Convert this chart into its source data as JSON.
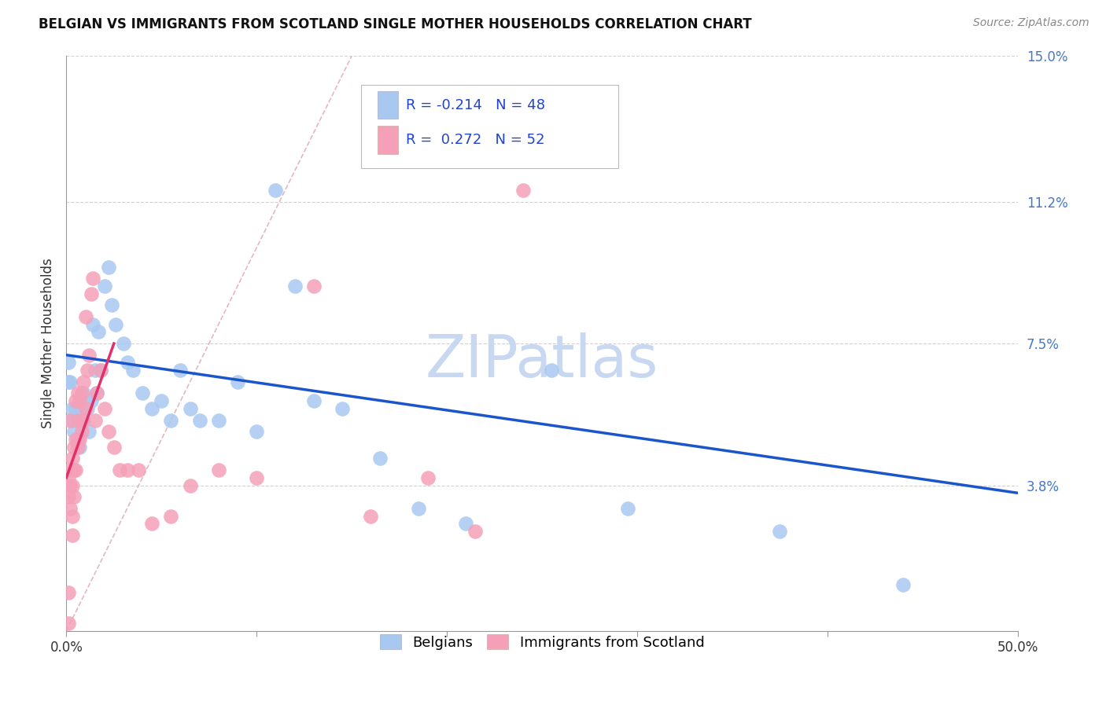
{
  "title": "BELGIAN VS IMMIGRANTS FROM SCOTLAND SINGLE MOTHER HOUSEHOLDS CORRELATION CHART",
  "source": "Source: ZipAtlas.com",
  "ylabel": "Single Mother Households",
  "xlim": [
    0,
    0.5
  ],
  "ylim": [
    0,
    0.15
  ],
  "yticks": [
    0.038,
    0.075,
    0.112,
    0.15
  ],
  "ytick_labels": [
    "3.8%",
    "7.5%",
    "11.2%",
    "15.0%"
  ],
  "xticks": [
    0.0,
    0.1,
    0.2,
    0.3,
    0.4,
    0.5
  ],
  "xtick_labels_ends": [
    "0.0%",
    "50.0%"
  ],
  "grid_color": "#cccccc",
  "background_color": "#ffffff",
  "watermark": "ZIPatlas",
  "watermark_color": "#c8d8f0",
  "legend_R_blue": "-0.214",
  "legend_N_blue": "48",
  "legend_R_pink": "0.272",
  "legend_N_pink": "52",
  "blue_color": "#a8c8f0",
  "pink_color": "#f5a0b8",
  "blue_line_color": "#1a55cc",
  "pink_line_color": "#e0306a",
  "diagonal_color": "#e0b0b8",
  "blue_trend_x": [
    0.0,
    0.5
  ],
  "blue_trend_y": [
    0.072,
    0.036
  ],
  "pink_trend_x": [
    0.0,
    0.025
  ],
  "pink_trend_y": [
    0.04,
    0.075
  ],
  "blue_scatter_x": [
    0.001,
    0.001,
    0.002,
    0.003,
    0.003,
    0.004,
    0.005,
    0.006,
    0.007,
    0.008,
    0.009,
    0.01,
    0.011,
    0.012,
    0.013,
    0.014,
    0.015,
    0.016,
    0.017,
    0.018,
    0.02,
    0.022,
    0.024,
    0.026,
    0.03,
    0.032,
    0.035,
    0.04,
    0.045,
    0.05,
    0.055,
    0.06,
    0.065,
    0.07,
    0.08,
    0.09,
    0.1,
    0.11,
    0.12,
    0.13,
    0.145,
    0.165,
    0.185,
    0.21,
    0.255,
    0.295,
    0.375,
    0.44
  ],
  "blue_scatter_y": [
    0.07,
    0.065,
    0.065,
    0.058,
    0.055,
    0.052,
    0.058,
    0.05,
    0.048,
    0.055,
    0.062,
    0.06,
    0.058,
    0.052,
    0.06,
    0.08,
    0.068,
    0.062,
    0.078,
    0.068,
    0.09,
    0.095,
    0.085,
    0.08,
    0.075,
    0.07,
    0.068,
    0.062,
    0.058,
    0.06,
    0.055,
    0.068,
    0.058,
    0.055,
    0.055,
    0.065,
    0.052,
    0.115,
    0.09,
    0.06,
    0.058,
    0.045,
    0.032,
    0.028,
    0.068,
    0.032,
    0.026,
    0.012
  ],
  "pink_scatter_x": [
    0.001,
    0.001,
    0.001,
    0.001,
    0.002,
    0.002,
    0.002,
    0.002,
    0.003,
    0.003,
    0.003,
    0.003,
    0.004,
    0.004,
    0.004,
    0.005,
    0.005,
    0.005,
    0.006,
    0.006,
    0.006,
    0.007,
    0.007,
    0.008,
    0.008,
    0.009,
    0.009,
    0.01,
    0.01,
    0.011,
    0.012,
    0.013,
    0.014,
    0.015,
    0.016,
    0.018,
    0.02,
    0.022,
    0.025,
    0.028,
    0.032,
    0.038,
    0.045,
    0.055,
    0.065,
    0.08,
    0.1,
    0.13,
    0.16,
    0.19,
    0.215,
    0.24
  ],
  "pink_scatter_y": [
    0.002,
    0.01,
    0.035,
    0.04,
    0.032,
    0.038,
    0.042,
    0.055,
    0.025,
    0.03,
    0.038,
    0.045,
    0.035,
    0.042,
    0.048,
    0.042,
    0.05,
    0.06,
    0.048,
    0.055,
    0.062,
    0.05,
    0.06,
    0.052,
    0.062,
    0.055,
    0.065,
    0.058,
    0.082,
    0.068,
    0.072,
    0.088,
    0.092,
    0.055,
    0.062,
    0.068,
    0.058,
    0.052,
    0.048,
    0.042,
    0.042,
    0.042,
    0.028,
    0.03,
    0.038,
    0.042,
    0.04,
    0.09,
    0.03,
    0.04,
    0.026,
    0.115
  ]
}
